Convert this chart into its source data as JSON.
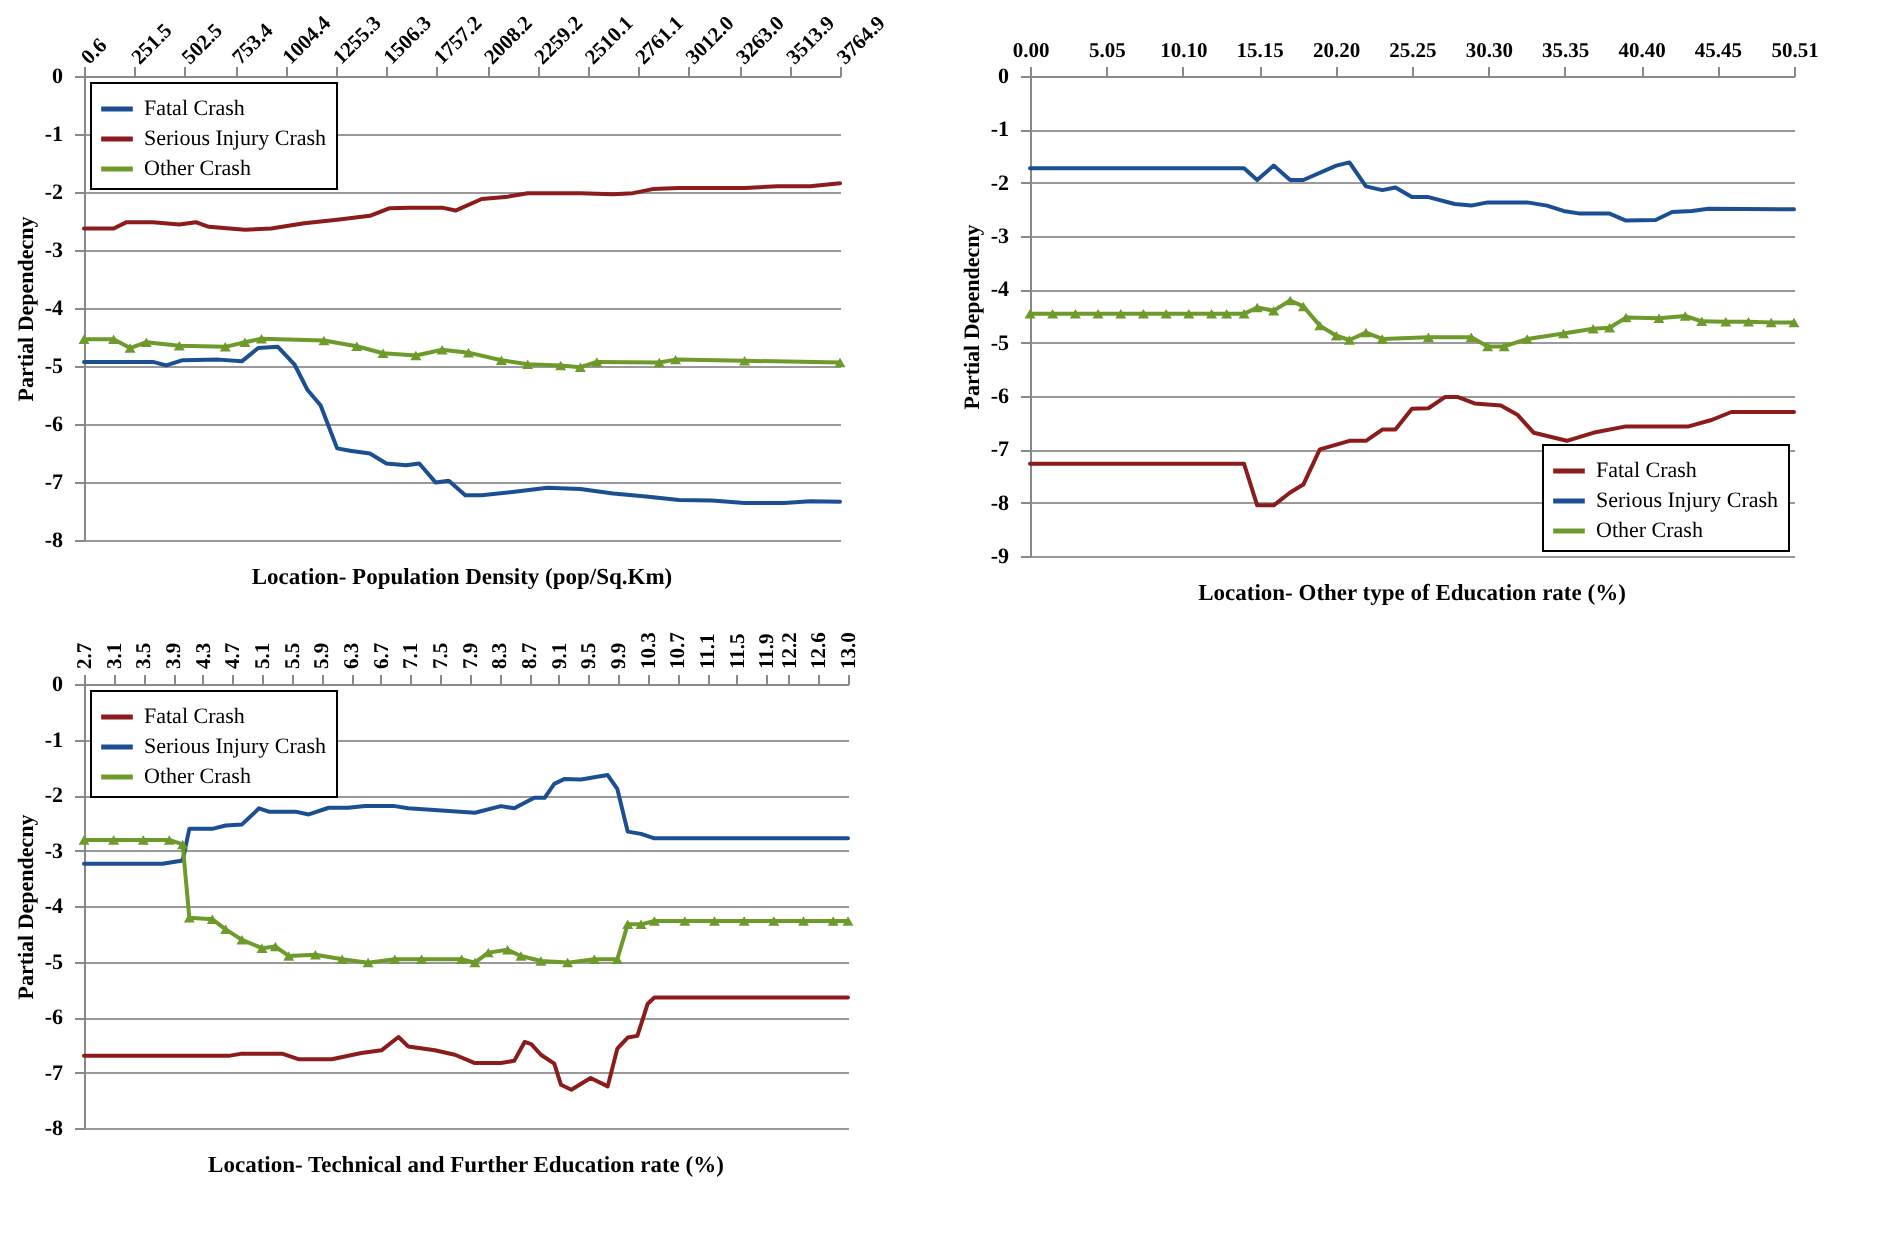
{
  "chart_data": [
    {
      "type": "line",
      "xlabel": "Location- Population Density (pop/Sq.Km)",
      "ylabel": "Partial Dependecny",
      "grid": "y",
      "legend": "top left",
      "xlim": [
        0.6,
        3764.9
      ],
      "xticks": [
        0.6,
        251.5,
        502.5,
        753.4,
        1004.4,
        1255.3,
        1506.3,
        1757.2,
        2008.2,
        2259.2,
        2510.1,
        2761.1,
        {
          "value": 3012,
          "label": "3012.0"
        },
        {
          "value": 3263,
          "label": "3263.0"
        },
        3513.9,
        3764.9
      ],
      "ylim": [
        -8,
        0
      ],
      "yticks": [
        -8,
        -7,
        -6,
        -5,
        -4,
        -3,
        -2,
        -1,
        0
      ],
      "series": [
        {
          "name": "Fatal Crash",
          "color": "#1c4f91",
          "x": [
            0.6,
            344,
            410,
            492,
            672,
            786,
            868,
            966,
            1048,
            1113,
            1179,
            1261,
            1326,
            1424,
            1506,
            1604,
            1670,
            1752,
            1817,
            1899,
            1981,
            2144,
            2308,
            2472,
            2635,
            2799,
            2963,
            3126,
            3290,
            3486,
            3617,
            3764.9
          ],
          "values": [
            -4.93,
            -4.93,
            -4.99,
            -4.9,
            -4.89,
            -4.92,
            -4.69,
            -4.67,
            -4.97,
            -5.41,
            -5.68,
            -6.42,
            -6.46,
            -6.51,
            -6.68,
            -6.71,
            -6.68,
            -7.01,
            -6.98,
            -7.23,
            -7.23,
            -7.17,
            -7.1,
            -7.12,
            -7.2,
            -7.25,
            -7.31,
            -7.32,
            -7.36,
            -7.36,
            -7.33,
            -7.34
          ]
        },
        {
          "name": "Serious Injury Crash",
          "color": "#8b1c1c",
          "x": [
            0.6,
            148,
            213,
            344,
            475,
            557,
            622,
            802,
            933,
            1097,
            1261,
            1424,
            1523,
            1621,
            1784,
            1850,
            1981,
            2112,
            2210,
            2472,
            2635,
            2734,
            2832,
            2963,
            3290,
            3454,
            3617,
            3764.9
          ],
          "values": [
            -2.63,
            -2.63,
            -2.52,
            -2.52,
            -2.56,
            -2.52,
            -2.6,
            -2.65,
            -2.63,
            -2.54,
            -2.48,
            -2.41,
            -2.28,
            -2.27,
            -2.27,
            -2.32,
            -2.12,
            -2.08,
            -2.02,
            -2.02,
            -2.04,
            -2.02,
            -1.95,
            -1.93,
            -1.93,
            -1.9,
            -1.9,
            -1.85
          ]
        },
        {
          "name": "Other Crash",
          "color": "#6e9a2b",
          "marker": "triangle",
          "x": [
            0.6,
            148,
            230,
            311,
            475,
            704,
            802,
            884,
            1195,
            1359,
            1490,
            1653,
            1784,
            1915,
            2079,
            2210,
            2374,
            2472,
            2554,
            2865,
            2946,
            3290,
            3764.9
          ],
          "values": [
            -4.54,
            -4.54,
            -4.69,
            -4.59,
            -4.65,
            -4.67,
            -4.59,
            -4.53,
            -4.56,
            -4.66,
            -4.78,
            -4.82,
            -4.72,
            -4.77,
            -4.9,
            -4.97,
            -4.99,
            -5.02,
            -4.93,
            -4.94,
            -4.89,
            -4.91,
            -4.94
          ]
        }
      ]
    },
    {
      "type": "line",
      "xlabel": "Location- Other type of Education rate (%)",
      "ylabel": "Partial Dependecny",
      "grid": "y",
      "legend": "bottom right",
      "xlim": [
        0,
        50.51
      ],
      "xticks": [
        {
          "value": 0,
          "label": "0.00"
        },
        5.05,
        {
          "value": 10.1,
          "label": "10.10"
        },
        15.15,
        {
          "value": 20.2,
          "label": "20.20"
        },
        25.25,
        {
          "value": 30.3,
          "label": "30.30"
        },
        35.35,
        {
          "value": 40.4,
          "label": "40.40"
        },
        45.45,
        50.51
      ],
      "ylim": [
        -9,
        0
      ],
      "yticks": [
        -9,
        -8,
        -7,
        -6,
        -5,
        -4,
        -3,
        -2,
        -1,
        0
      ],
      "series": [
        {
          "name": "Fatal Crash",
          "color": "#8b1c1c",
          "x": [
            0,
            14.15,
            15.02,
            16.11,
            17.2,
            18.07,
            19.16,
            20.03,
            21.12,
            22.21,
            23.29,
            24.16,
            25.25,
            26.34,
            27.43,
            28.3,
            29.39,
            31.13,
            32.22,
            33.31,
            35.49,
            37.23,
            39.4,
            43.54,
            45.06,
            46.37,
            50.51
          ],
          "values": [
            -7.27,
            -7.27,
            -8.05,
            -8.05,
            -7.81,
            -7.66,
            -7.0,
            -6.93,
            -6.84,
            -6.84,
            -6.63,
            -6.63,
            -6.24,
            -6.23,
            -6.02,
            -6.02,
            -6.14,
            -6.18,
            -6.35,
            -6.69,
            -6.84,
            -6.69,
            -6.57,
            -6.57,
            -6.45,
            -6.3,
            -6.3
          ]
        },
        {
          "name": "Serious Injury Crash",
          "color": "#1c4f91",
          "x": [
            0,
            14.15,
            15.02,
            16.11,
            17.2,
            18.07,
            20.25,
            21.12,
            22.21,
            23.29,
            24.16,
            25.25,
            26.34,
            28.08,
            29.17,
            30.26,
            32.87,
            34.18,
            35.27,
            36.36,
            38.32,
            39.4,
            41.36,
            42.45,
            43.76,
            44.85,
            50.51
          ],
          "values": [
            -1.73,
            -1.73,
            -1.95,
            -1.68,
            -1.95,
            -1.95,
            -1.68,
            -1.62,
            -2.07,
            -2.14,
            -2.09,
            -2.27,
            -2.27,
            -2.4,
            -2.43,
            -2.37,
            -2.37,
            -2.43,
            -2.53,
            -2.58,
            -2.58,
            -2.71,
            -2.7,
            -2.55,
            -2.53,
            -2.49,
            -2.5
          ]
        },
        {
          "name": "Other Crash",
          "color": "#6e9a2b",
          "marker": "triangle",
          "x": [
            0,
            1.5,
            3,
            4.5,
            6,
            7.5,
            9,
            10.5,
            12,
            13,
            14.15,
            15.02,
            16.11,
            17.2,
            18.07,
            19.16,
            20.25,
            21.12,
            22.21,
            23.29,
            26.34,
            29.17,
            30.26,
            31.35,
            32.87,
            35.27,
            37.23,
            38.32,
            39.4,
            41.58,
            43.32,
            44.41,
            46,
            47.5,
            49,
            50.51
          ],
          "values": [
            -4.46,
            -4.46,
            -4.46,
            -4.46,
            -4.46,
            -4.46,
            -4.46,
            -4.46,
            -4.46,
            -4.46,
            -4.46,
            -4.34,
            -4.4,
            -4.21,
            -4.32,
            -4.68,
            -4.87,
            -4.95,
            -4.81,
            -4.93,
            -4.9,
            -4.9,
            -5.07,
            -5.07,
            -4.93,
            -4.83,
            -4.74,
            -4.72,
            -4.53,
            -4.54,
            -4.5,
            -4.6,
            -4.61,
            -4.61,
            -4.62,
            -4.62
          ]
        }
      ]
    },
    {
      "type": "line",
      "xlabel": "Location- Technical and Further Education rate (%)",
      "ylabel": "Partial Dependecny",
      "grid": "y",
      "legend": "top left",
      "xlim": [
        2.7,
        13.0
      ],
      "xticks": [
        2.7,
        3.1,
        3.5,
        3.9,
        4.3,
        4.7,
        5.1,
        5.5,
        5.9,
        6.3,
        6.7,
        7.1,
        7.5,
        7.9,
        8.3,
        8.7,
        9.1,
        9.5,
        9.9,
        10.3,
        10.7,
        11.1,
        11.5,
        11.9,
        12.2,
        12.6,
        {
          "value": 13,
          "label": "13.0"
        }
      ],
      "ylim": [
        -8,
        0
      ],
      "yticks": [
        -8,
        -7,
        -6,
        -5,
        -4,
        -3,
        -2,
        -1,
        0
      ],
      "series": [
        {
          "name": "Fatal Crash",
          "color": "#8b1c1c",
          "x": [
            2.7,
            4.65,
            4.83,
            5.37,
            5.59,
            6.04,
            6.44,
            6.71,
            6.94,
            7.07,
            7.43,
            7.7,
            7.97,
            8.32,
            8.5,
            8.64,
            8.73,
            8.86,
            9.04,
            9.13,
            9.27,
            9.53,
            9.76,
            9.89,
            10.03,
            10.16,
            10.3,
            10.39,
            13.0
          ],
          "values": [
            -6.7,
            -6.7,
            -6.66,
            -6.66,
            -6.76,
            -6.76,
            -6.65,
            -6.6,
            -6.36,
            -6.53,
            -6.6,
            -6.68,
            -6.83,
            -6.83,
            -6.79,
            -6.45,
            -6.49,
            -6.68,
            -6.84,
            -7.22,
            -7.31,
            -7.1,
            -7.25,
            -6.57,
            -6.37,
            -6.34,
            -5.76,
            -5.65,
            -5.65
          ]
        },
        {
          "name": "Serious Injury Crash",
          "color": "#1c4f91",
          "x": [
            2.7,
            3.76,
            4.03,
            4.12,
            4.43,
            4.61,
            4.83,
            5.06,
            5.19,
            5.55,
            5.73,
            6.0,
            6.26,
            6.49,
            6.89,
            7.07,
            7.97,
            8.32,
            8.5,
            8.77,
            8.91,
            9.04,
            9.18,
            9.4,
            9.76,
            9.89,
            10.03,
            10.21,
            10.39,
            13.0
          ],
          "values": [
            -3.24,
            -3.24,
            -3.18,
            -2.61,
            -2.61,
            -2.55,
            -2.53,
            -2.24,
            -2.3,
            -2.3,
            -2.35,
            -2.23,
            -2.23,
            -2.2,
            -2.2,
            -2.24,
            -2.32,
            -2.2,
            -2.24,
            -2.05,
            -2.05,
            -1.8,
            -1.71,
            -1.72,
            -1.64,
            -1.89,
            -2.66,
            -2.7,
            -2.78,
            -2.78
          ]
        },
        {
          "name": "Other Crash",
          "color": "#6e9a2b",
          "marker": "triangle",
          "x": [
            2.7,
            3.1,
            3.5,
            3.85,
            4.03,
            4.12,
            4.43,
            4.61,
            4.83,
            5.1,
            5.28,
            5.46,
            5.82,
            6.18,
            6.53,
            6.89,
            7.25,
            7.79,
            7.97,
            8.15,
            8.41,
            8.59,
            8.86,
            9.22,
            9.58,
            9.89,
            10.03,
            10.21,
            10.39,
            10.8,
            11.2,
            11.6,
            12.0,
            12.4,
            12.8,
            13.0
          ],
          "values": [
            -2.81,
            -2.81,
            -2.81,
            -2.81,
            -2.89,
            -4.21,
            -4.24,
            -4.42,
            -4.61,
            -4.76,
            -4.73,
            -4.9,
            -4.88,
            -4.96,
            -5.02,
            -4.96,
            -4.96,
            -4.96,
            -5.02,
            -4.84,
            -4.79,
            -4.9,
            -4.99,
            -5.02,
            -4.96,
            -4.96,
            -4.33,
            -4.33,
            -4.27,
            -4.27,
            -4.27,
            -4.27,
            -4.27,
            -4.27,
            -4.27,
            -4.27
          ]
        }
      ]
    }
  ]
}
